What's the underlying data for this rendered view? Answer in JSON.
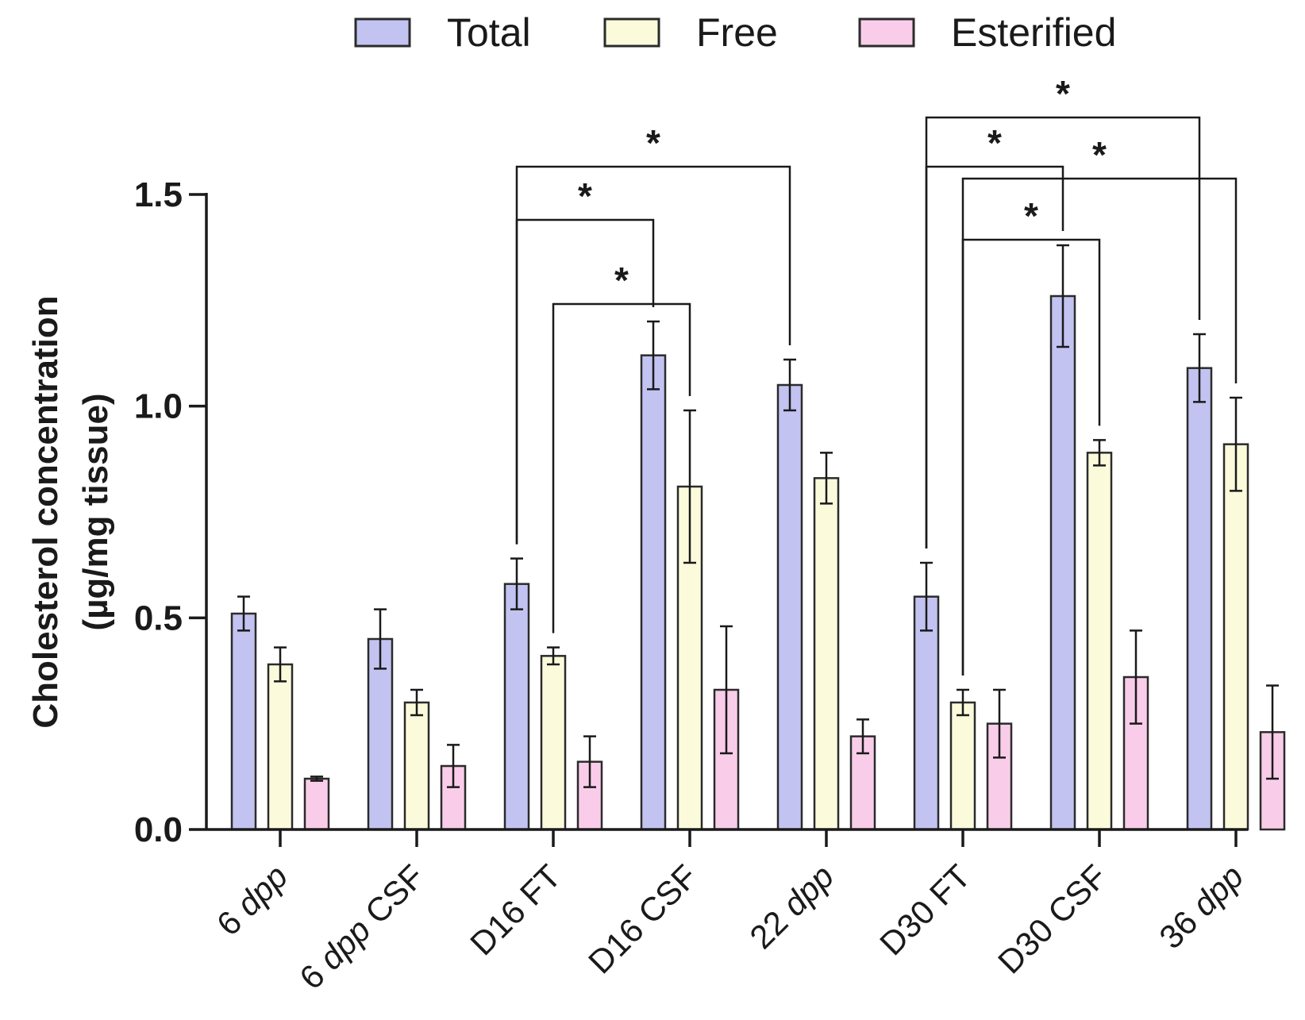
{
  "chart_data": {
    "type": "bar",
    "title": "",
    "xlabel": "",
    "ylabel": "Cholesterol concentration",
    "ylabel_units": "(µg/mg tissue)",
    "ylim": [
      0,
      1.5
    ],
    "yticks": [
      "0.0",
      "0.5",
      "1.0",
      "1.5"
    ],
    "categories": [
      "6 dpp",
      "6 dpp CSF",
      "D16 FT",
      "D16 CSF",
      "22 dpp",
      "D30 FT",
      "D30 CSF",
      "36 dpp"
    ],
    "category_labels": [
      {
        "prefix": "6 ",
        "italic": "dpp",
        "suffix": ""
      },
      {
        "prefix": "6 ",
        "italic": "dpp",
        "suffix": " CSF"
      },
      {
        "prefix": "D16 FT",
        "italic": "",
        "suffix": ""
      },
      {
        "prefix": "D16 CSF",
        "italic": "",
        "suffix": ""
      },
      {
        "prefix": "22 ",
        "italic": "dpp",
        "suffix": ""
      },
      {
        "prefix": "D30 FT",
        "italic": "",
        "suffix": ""
      },
      {
        "prefix": "D30 CSF",
        "italic": "",
        "suffix": ""
      },
      {
        "prefix": "36 ",
        "italic": "dpp",
        "suffix": ""
      }
    ],
    "series": [
      {
        "name": "Total",
        "color": "#c3c3f2",
        "values": [
          0.51,
          0.45,
          0.58,
          1.12,
          1.05,
          0.55,
          1.26,
          1.09
        ],
        "errors": [
          0.04,
          0.07,
          0.06,
          0.08,
          0.06,
          0.08,
          0.12,
          0.08
        ]
      },
      {
        "name": "Free",
        "color": "#fbfbdc",
        "values": [
          0.39,
          0.3,
          0.41,
          0.81,
          0.83,
          0.3,
          0.89,
          0.91
        ],
        "errors": [
          0.04,
          0.03,
          0.02,
          0.18,
          0.06,
          0.03,
          0.03,
          0.11
        ]
      },
      {
        "name": "Esterified",
        "color": "#f9cde9",
        "values": [
          0.12,
          0.15,
          0.16,
          0.33,
          0.22,
          0.25,
          0.36,
          0.23
        ],
        "errors": [
          0.005,
          0.05,
          0.06,
          0.15,
          0.04,
          0.08,
          0.11,
          0.11
        ]
      }
    ],
    "legend": {
      "placement": "top",
      "entries": [
        "Total",
        "Free",
        "Esterified"
      ]
    },
    "significance": [
      {
        "from": [
          2,
          1
        ],
        "to": [
          3,
          1
        ],
        "label": "*"
      },
      {
        "from": [
          2,
          0
        ],
        "to": [
          3,
          0
        ],
        "label": "*"
      },
      {
        "from": [
          2,
          0
        ],
        "to": [
          4,
          0
        ],
        "label": "*"
      },
      {
        "from": [
          5,
          1
        ],
        "to": [
          6,
          1
        ],
        "label": "*"
      },
      {
        "from": [
          5,
          1
        ],
        "to": [
          7,
          1
        ],
        "label": "*"
      },
      {
        "from": [
          5,
          0
        ],
        "to": [
          6,
          0
        ],
        "label": "*"
      },
      {
        "from": [
          5,
          0
        ],
        "to": [
          7,
          0
        ],
        "label": "*"
      }
    ]
  }
}
